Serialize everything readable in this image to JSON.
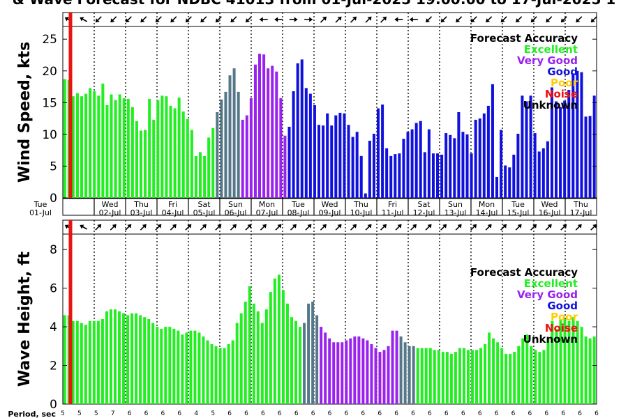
{
  "chart_data": {
    "title": "& Wave Forecast for NDBC 41013 from 01-Jul-2025 19:00:00 to 17-Jul-2025 1",
    "type": "bar",
    "legend": {
      "title": "Forecast Accuracy",
      "position": "top-right",
      "items": [
        {
          "label": "Excellent",
          "color": "#22ee22"
        },
        {
          "label": "Very Good",
          "color": "#9922ee"
        },
        {
          "label": "Good",
          "color": "#1111dd"
        },
        {
          "label": "Poor",
          "color": "#ffcc00"
        },
        {
          "label": "Noise",
          "color": "#ee1111"
        },
        {
          "label": "Unknown",
          "color": "#000000"
        }
      ]
    },
    "colors": {
      "E": "#22ee22",
      "V": "#9922ee",
      "G": "#1111dd",
      "T": "#557788",
      "now": "#ee1111"
    },
    "days": [
      {
        "wd": "Tue",
        "date": "01-Jul"
      },
      {
        "wd": "Wed",
        "date": "02-Jul"
      },
      {
        "wd": "Thu",
        "date": "03-Jul"
      },
      {
        "wd": "Fri",
        "date": "04-Jul"
      },
      {
        "wd": "Sat",
        "date": "05-Jul"
      },
      {
        "wd": "Sun",
        "date": "06-Jul"
      },
      {
        "wd": "Mon",
        "date": "07-Jul"
      },
      {
        "wd": "Tue",
        "date": "08-Jul"
      },
      {
        "wd": "Wed",
        "date": "09-Jul"
      },
      {
        "wd": "Thu",
        "date": "10-Jul"
      },
      {
        "wd": "Fri",
        "date": "11-Jul"
      },
      {
        "wd": "Sat",
        "date": "12-Jul"
      },
      {
        "wd": "Sun",
        "date": "13-Jul"
      },
      {
        "wd": "Mon",
        "date": "14-Jul"
      },
      {
        "wd": "Tue",
        "date": "15-Jul"
      },
      {
        "wd": "Wed",
        "date": "16-Jul"
      },
      {
        "wd": "Thu",
        "date": "17-Jul"
      }
    ],
    "wind": {
      "ylabel": "Wind Speed, kts",
      "ylim": [
        0,
        27
      ],
      "yticks": [
        0,
        5,
        10,
        15,
        20,
        25
      ],
      "values": [
        18.7,
        18.6,
        16.0,
        16.5,
        16.0,
        16.4,
        17.3,
        16.8,
        16.1,
        18.0,
        14.6,
        16.3,
        15.4,
        16.3,
        15.7,
        15.6,
        14.3,
        12.1,
        10.6,
        10.7,
        15.6,
        12.3,
        15.4,
        16.1,
        16.0,
        14.5,
        14.1,
        15.8,
        13.6,
        12.4,
        10.7,
        6.6,
        7.2,
        6.6,
        9.5,
        11.0,
        13.5,
        15.5,
        16.7,
        19.3,
        20.4,
        16.7,
        12.3,
        13.0,
        15.7,
        21.0,
        22.7,
        22.6,
        20.4,
        20.8,
        19.9,
        15.7,
        9.8,
        11.2,
        16.8,
        21.2,
        21.8,
        17.3,
        16.4,
        14.6,
        11.5,
        11.4,
        13.3,
        11.4,
        13.0,
        13.4,
        13.3,
        11.5,
        9.6,
        10.4,
        6.6,
        0.7,
        9.0,
        10.1,
        14.1,
        14.7,
        7.8,
        6.6,
        6.9,
        7.0,
        9.3,
        10.4,
        10.8,
        11.8,
        12.1,
        7.2,
        10.8,
        7.0,
        7.0,
        6.8,
        10.2,
        9.9,
        9.4,
        13.5,
        10.4,
        10.0,
        7.0,
        12.3,
        12.5,
        13.3,
        14.5,
        17.9,
        3.3,
        10.7,
        5.1,
        4.8,
        6.8,
        10.1,
        16.1,
        15.2,
        16.1,
        10.2,
        7.3,
        7.8,
        8.9,
        17.4,
        15.2,
        14.3,
        15.3,
        17.0,
        19.6,
        20.0,
        19.8,
        12.8,
        12.9,
        16.1
      ],
      "classes": "EEEEEEEEEEEEEEEEEEEEEEEEEEEEEEEEEEEETTTTTTVVVVVVVVVVVGGGGGGGGGGGGGGGGGGGGGGGGGGGGGGGGGGGGGGGGGGGGGGGGGGGGGGGGGGGGGGGGGGGGGGGGGGG",
      "arrows": [
        210,
        210,
        135,
        135,
        135,
        135,
        135,
        135,
        135,
        135,
        135,
        135,
        135,
        180,
        180,
        0,
        0,
        315,
        315,
        315,
        315,
        315,
        180,
        180,
        135,
        135,
        135,
        135,
        135,
        135,
        135,
        135,
        135,
        135,
        135,
        135
      ]
    },
    "wave": {
      "ylabel": "Wave Height, ft",
      "ylim": [
        0,
        8.8
      ],
      "yticks": [
        0,
        2,
        4,
        6,
        8
      ],
      "values": [
        4.6,
        4.6,
        4.3,
        4.3,
        4.2,
        4.1,
        4.3,
        4.3,
        4.3,
        4.4,
        4.8,
        4.9,
        4.9,
        4.8,
        4.7,
        4.6,
        4.7,
        4.7,
        4.6,
        4.5,
        4.4,
        4.2,
        4.0,
        3.9,
        4.0,
        4.0,
        3.9,
        3.8,
        3.6,
        3.7,
        3.8,
        3.8,
        3.7,
        3.5,
        3.3,
        3.1,
        3.0,
        2.9,
        2.9,
        3.1,
        3.3,
        4.2,
        4.7,
        5.3,
        6.1,
        5.2,
        4.8,
        4.2,
        4.9,
        5.8,
        6.5,
        6.7,
        5.9,
        5.2,
        4.5,
        4.3,
        4.0,
        4.2,
        5.2,
        5.3,
        4.6,
        4.0,
        3.7,
        3.4,
        3.2,
        3.2,
        3.2,
        3.3,
        3.4,
        3.5,
        3.5,
        3.4,
        3.3,
        3.1,
        2.9,
        2.7,
        2.8,
        3.0,
        3.8,
        3.8,
        3.5,
        3.2,
        3.0,
        3.0,
        2.9,
        2.9,
        2.9,
        2.9,
        2.8,
        2.8,
        2.7,
        2.7,
        2.6,
        2.7,
        2.9,
        2.9,
        2.8,
        2.8,
        2.8,
        2.9,
        3.1,
        3.7,
        3.4,
        3.2,
        2.9,
        2.6,
        2.6,
        2.7,
        3.0,
        3.4,
        3.6,
        3.0,
        2.8,
        2.7,
        2.8,
        3.4,
        4.3,
        3.9,
        4.4,
        4.4,
        4.3,
        4.5,
        4.3,
        4.0,
        3.5,
        3.4,
        3.5
      ],
      "classes": "EEEEEEEEEEEEEEEEEEEEEEEEEEEEEEEEEEEEEEEEEEEEEEEEEEEEEEEEETTTTVVVVVVVVVVVVVVVVVVVTTTTEEEEEEEEEEEEEEEEEEEEEEEEEEEEEEEEEEEEEEEEEEEEEE",
      "arrows": [
        210,
        210,
        315,
        315,
        315,
        315,
        315,
        315,
        315,
        315,
        315,
        315,
        315,
        315,
        315,
        315,
        315,
        315,
        315,
        315,
        315,
        315,
        315,
        315,
        315,
        315,
        315,
        315,
        315,
        315,
        315,
        315,
        315,
        315,
        315,
        315
      ]
    },
    "period": {
      "label": "Period, sec",
      "values": [
        "5",
        "5",
        "5",
        "7",
        "6",
        "6",
        "6",
        "6",
        "4",
        "5",
        "6",
        "6",
        "6",
        "6",
        "6",
        "6",
        "6",
        "6",
        "6",
        "6",
        "6",
        "6",
        "6",
        "6",
        "6",
        "6",
        "6",
        "6",
        "6",
        "6",
        "6",
        "6",
        "6"
      ]
    }
  }
}
